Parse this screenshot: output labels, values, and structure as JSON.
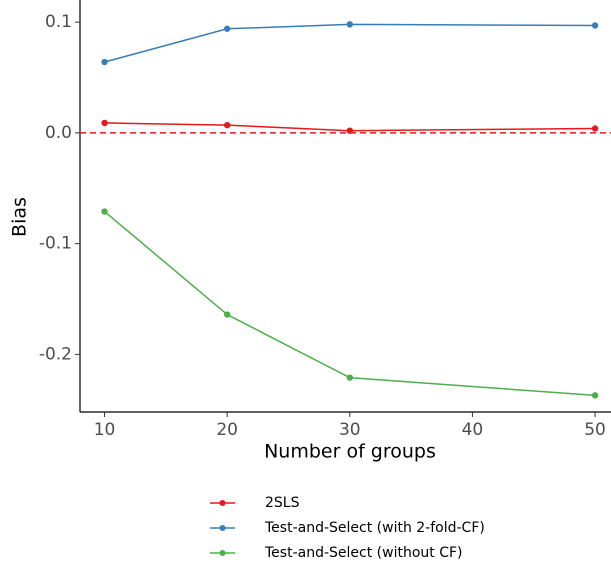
{
  "chart_data": {
    "type": "line",
    "x_label": "Number of groups",
    "y_label": "Bias",
    "x": [
      10,
      20,
      30,
      50
    ],
    "series": [
      {
        "name": "2SLS",
        "color": "#e41a1c",
        "values": [
          0.009,
          0.007,
          0.002,
          0.004
        ]
      },
      {
        "name": "Test-and-Select (with 2-fold-CF)",
        "color": "#377eb8",
        "values": [
          0.064,
          0.094,
          0.098,
          0.097
        ]
      },
      {
        "name": "Test-and-Select (without CF)",
        "color": "#4daf4a",
        "values": [
          -0.071,
          -0.164,
          -0.221,
          -0.237
        ]
      }
    ],
    "reference_line": {
      "value": 0,
      "color": "#e41a1c",
      "dashed": true
    },
    "xlim": [
      8,
      51.3
    ],
    "ylim": [
      -0.252,
      0.12
    ],
    "xticks": [
      10,
      20,
      30,
      40,
      50
    ],
    "yticks": [
      {
        "value": -0.2,
        "label": "-0.2"
      },
      {
        "value": -0.1,
        "label": "-0.1"
      },
      {
        "value": 0,
        "label": "0.0"
      },
      {
        "value": 0.1,
        "label": "0.1"
      }
    ],
    "grid": false,
    "legend_position": "bottom"
  }
}
